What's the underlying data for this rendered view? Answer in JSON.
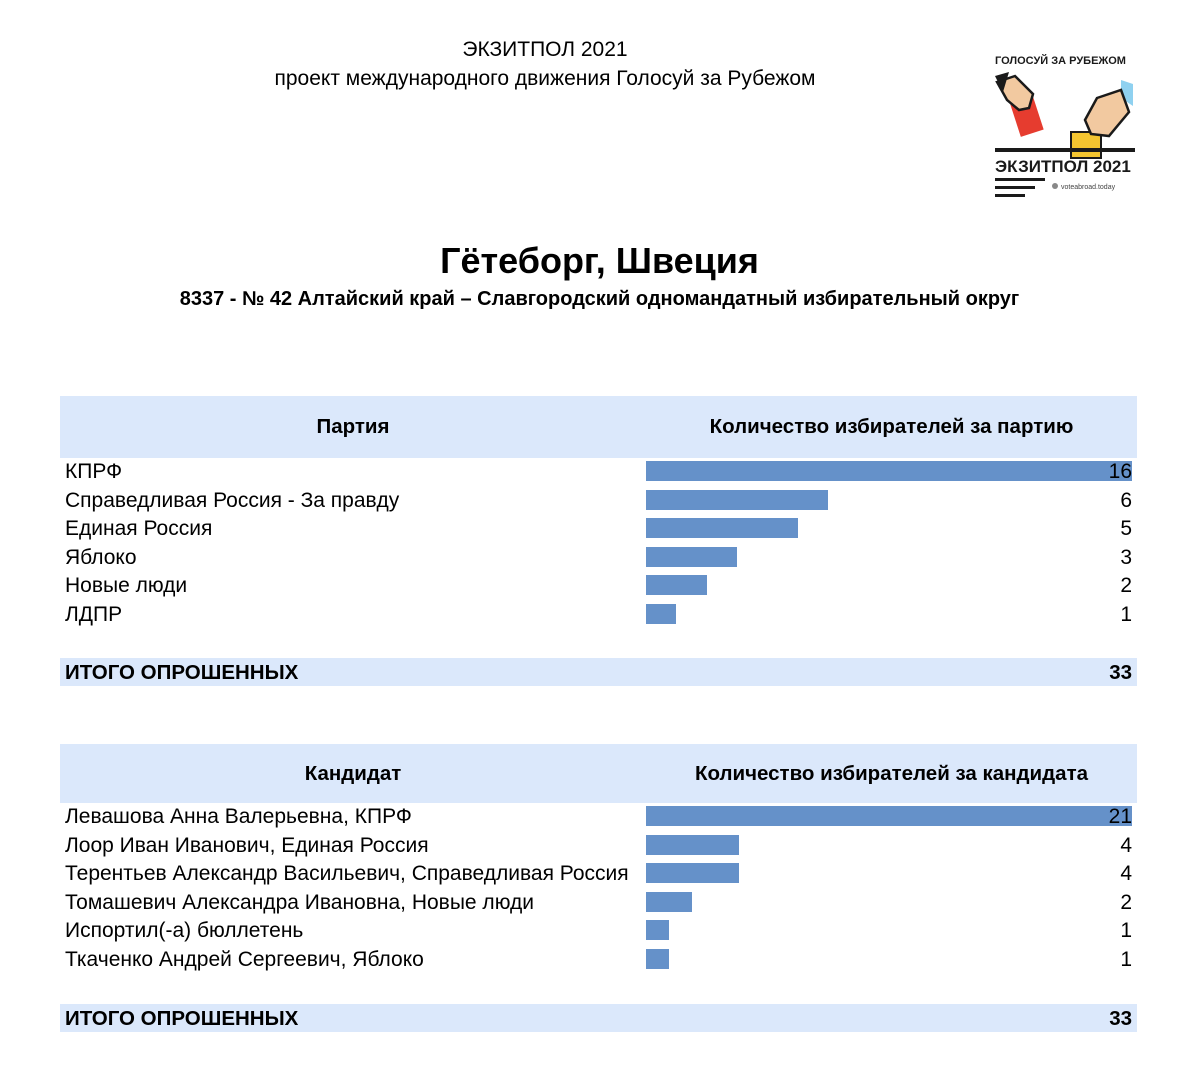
{
  "header": {
    "title": "ЭКЗИТПОЛ 2021",
    "subtitle": "проект международного движения Голосуй за Рубежом"
  },
  "logo": {
    "top_text": "ГОЛОСУЙ ЗА РУБЕЖОМ",
    "main_text": "ЭКЗИТПОЛ 2021",
    "small_text": "voteabroad.today",
    "colors": {
      "red": "#e63c2f",
      "yellow": "#f4c530",
      "blue": "#8fd1f0",
      "dark": "#1a1a1a"
    }
  },
  "location": {
    "city": "Гётеборг, Швеция",
    "district": "8337 - № 42 Алтайский край – Славгородский одномандатный избирательный округ"
  },
  "party_table": {
    "header_left": "Партия",
    "header_right": "Количество избирателей за партию",
    "max": 16,
    "rows": [
      {
        "label": "КПРФ",
        "value": 16
      },
      {
        "label": "Справедливая Россия - За правду",
        "value": 6
      },
      {
        "label": "Единая Россия",
        "value": 5
      },
      {
        "label": "Яблоко",
        "value": 3
      },
      {
        "label": "Новые люди",
        "value": 2
      },
      {
        "label": "ЛДПР",
        "value": 1
      }
    ],
    "total_label": "ИТОГО ОПРОШЕННЫХ",
    "total_value": "33"
  },
  "candidate_table": {
    "header_left": "Кандидат",
    "header_right": "Количество избирателей за кандидата",
    "max": 21,
    "rows": [
      {
        "label": "Левашова Анна Валерьевна, КПРФ",
        "value": 21
      },
      {
        "label": "Лоор Иван Иванович, Единая Россия",
        "value": 4
      },
      {
        "label": "Терентьев Александр Васильевич, Справедливая Россия",
        "value": 4
      },
      {
        "label": "Томашевич Александра Ивановна, Новые люди",
        "value": 2
      },
      {
        "label": "Испортил(-а) бюллетень",
        "value": 1
      },
      {
        "label": "Ткаченко Андрей Сергеевич, Яблоко",
        "value": 1
      }
    ],
    "total_label": "ИТОГО ОПРОШЕННЫХ",
    "total_value": "33"
  },
  "bar_color": "#6591c9",
  "header_bg": "#dbe8fb"
}
